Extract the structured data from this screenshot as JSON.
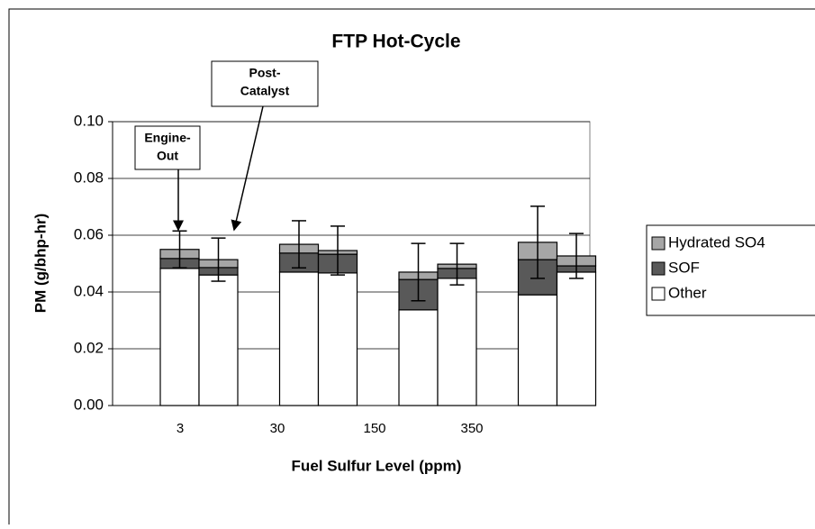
{
  "chart_data": {
    "type": "stacked-bar",
    "title": "FTP Hot-Cycle",
    "x_label": "Fuel Sulfur Level (ppm)",
    "y_label": "PM (g/bhp-hr)",
    "categories": [
      "3",
      "30",
      "150",
      "350"
    ],
    "series": [
      {
        "name": "Other",
        "color": "#ffffff",
        "values": [
          [
            0.0483,
            0.046
          ],
          [
            0.047,
            0.0467
          ],
          [
            0.0337,
            0.0448
          ],
          [
            0.039,
            0.047
          ]
        ]
      },
      {
        "name": "SOF",
        "color": "#595959",
        "values": [
          [
            0.0035,
            0.0026
          ],
          [
            0.0067,
            0.0066
          ],
          [
            0.0107,
            0.0035
          ],
          [
            0.0124,
            0.0022
          ]
        ]
      },
      {
        "name": "Hydrated SO4",
        "color": "#a6a6a6",
        "values": [
          [
            0.0032,
            0.0028
          ],
          [
            0.0031,
            0.0013
          ],
          [
            0.0026,
            0.0015
          ],
          [
            0.0061,
            0.0035
          ]
        ]
      }
    ],
    "errors": [
      [
        0.0065,
        0.0076
      ],
      [
        0.0083,
        0.0086
      ],
      [
        0.0101,
        0.0073
      ],
      [
        0.0127,
        0.0079
      ]
    ],
    "annotations": [
      {
        "lines": [
          "Engine-",
          "Out"
        ]
      },
      {
        "lines": [
          "Post-",
          "Catalyst"
        ]
      }
    ],
    "ylim": [
      0,
      0.1
    ],
    "yticks": [
      {
        "value": 0,
        "label": "0.00"
      },
      {
        "value": 0.02,
        "label": "0.02"
      },
      {
        "value": 0.04,
        "label": "0.04"
      },
      {
        "value": 0.06,
        "label": "0.06"
      },
      {
        "value": 0.08,
        "label": "0.08"
      },
      {
        "value": 0.1,
        "label": "0.10"
      }
    ],
    "grid": true,
    "legend": "right"
  }
}
